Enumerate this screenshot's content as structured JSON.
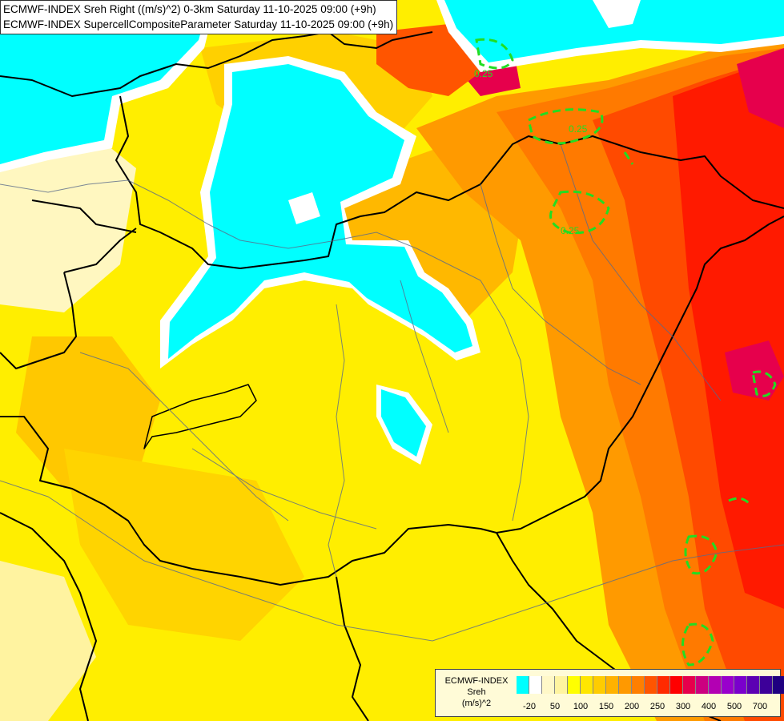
{
  "header": {
    "line1": "ECMWF-INDEX Sreh Right ((m/s)^2) 0-3km Saturday 11-10-2025 09:00 (+9h)",
    "line2": "ECMWF-INDEX SupercellCompositeParameter Saturday 11-10-2025 09:00 (+9h)"
  },
  "legend": {
    "source": "ECMWF-INDEX",
    "variable": "Sreh",
    "unit": "(m/s)^2",
    "colors": [
      "#00ffff",
      "#ffffff",
      "#fff8c8",
      "#fff4a0",
      "#ffff00",
      "#ffe600",
      "#ffcc00",
      "#ffb200",
      "#ff9900",
      "#ff7f00",
      "#ff5500",
      "#ff2a00",
      "#ff0000",
      "#e6004c",
      "#cc0080",
      "#b300b3",
      "#9900cc",
      "#7a00cc",
      "#5c00b3",
      "#3d0099",
      "#1f0080"
    ],
    "ticks": [
      {
        "label": "-20",
        "index": 1
      },
      {
        "label": "50",
        "index": 3
      },
      {
        "label": "100",
        "index": 5
      },
      {
        "label": "150",
        "index": 7
      },
      {
        "label": "200",
        "index": 9
      },
      {
        "label": "250",
        "index": 11
      },
      {
        "label": "300",
        "index": 13
      },
      {
        "label": "400",
        "index": 15
      },
      {
        "label": "500",
        "index": 17
      },
      {
        "label": "700",
        "index": 19
      }
    ]
  },
  "contour_labels": [
    "0.25",
    "0.25",
    "0.25"
  ]
}
